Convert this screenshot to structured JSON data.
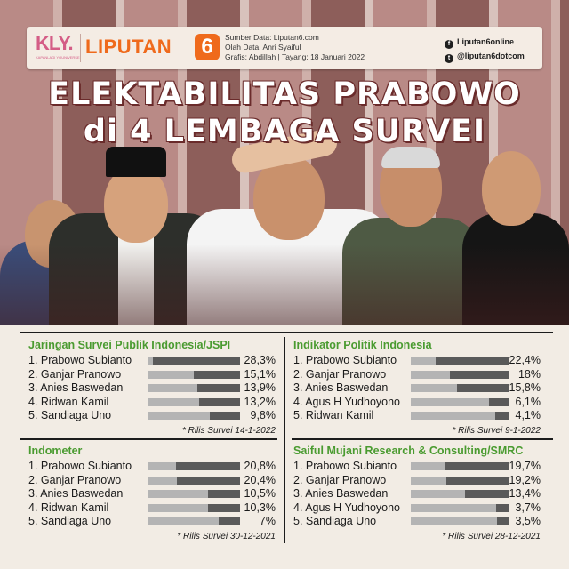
{
  "header": {
    "kly_logo": "KLY.",
    "kly_tagline": "KAPANLAGI YOUNIVERSE",
    "brand": "LIPUTAN",
    "brand_number": "6",
    "source": "Sumber Data: Liputan6.com",
    "editor": "Olah Data: Anri Syaiful",
    "credit": "Grafis: Abdillah | Tayang: 18 Januari 2022",
    "facebook": "Liputan6online",
    "twitter": "@liputan6dotcom",
    "facebook_icon": "f",
    "twitter_icon": "t"
  },
  "title": {
    "line1": "ELEKTABILITAS PRABOWO",
    "line2": "di 4 LEMBAGA SURVEI"
  },
  "colors": {
    "section_title": "#4a9b30",
    "bar_track": "#b4b4b4",
    "bar_fill": "#5a5a5a",
    "brand_orange": "#ef6a1c",
    "kly_pink": "#d45d86"
  },
  "chart_data": [
    {
      "type": "bar",
      "title": "Jaringan Survei Publik Indonesia/JSPI",
      "categories": [
        "1. Prabowo Subianto",
        "2. Ganjar Pranowo",
        "3. Anies Baswedan",
        "4. Ridwan Kamil",
        "5. Sandiaga Uno"
      ],
      "values": [
        28.3,
        15.1,
        13.9,
        13.2,
        9.8
      ],
      "labels": [
        "28,3%",
        "15,1%",
        "13,9%",
        "13,2%",
        "9,8%"
      ],
      "note": "* Rilis Survei 14-1-2022"
    },
    {
      "type": "bar",
      "title": "Indikator Politik Indonesia",
      "categories": [
        "1. Prabowo Subianto",
        "2. Ganjar Pranowo",
        "3. Anies Baswedan",
        "4. Agus H Yudhoyono",
        "5. Ridwan Kamil"
      ],
      "values": [
        22.4,
        18,
        15.8,
        6.1,
        4.1
      ],
      "labels": [
        "22,4%",
        "18%",
        "15,8%",
        "6,1%",
        "4,1%"
      ],
      "note": "* Rilis Survei 9-1-2022"
    },
    {
      "type": "bar",
      "title": "Indometer",
      "categories": [
        "1. Prabowo Subianto",
        "2. Ganjar Pranowo",
        "3. Anies Baswedan",
        "4. Ridwan Kamil",
        "5. Sandiaga Uno"
      ],
      "values": [
        20.8,
        20.4,
        10.5,
        10.3,
        7
      ],
      "labels": [
        "20,8%",
        "20,4%",
        "10,5%",
        "10,3%",
        "7%"
      ],
      "note": "* Rilis Survei 30-12-2021"
    },
    {
      "type": "bar",
      "title": "Saiful Mujani Research & Consulting/SMRC",
      "categories": [
        "1. Prabowo Subianto",
        "2. Ganjar Pranowo",
        "3. Anies Baswedan",
        "4. Agus H Yudhoyono",
        "5. Sandiaga Uno"
      ],
      "values": [
        19.7,
        19.2,
        13.4,
        3.7,
        3.5
      ],
      "labels": [
        "19,7%",
        "19,2%",
        "13,4%",
        "3,7%",
        "3,5%"
      ],
      "note": "* Rilis Survei 28-12-2021"
    }
  ]
}
